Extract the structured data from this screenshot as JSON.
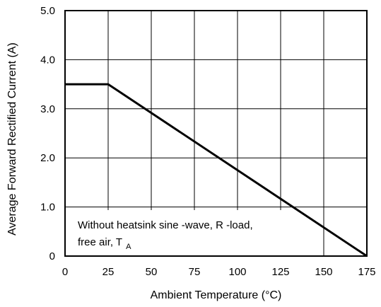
{
  "chart_data": {
    "type": "line",
    "xlabel": "Ambient Temperature (°C)",
    "ylabel": "Average Forward Rectified Current (A)",
    "xlim": [
      0,
      175
    ],
    "ylim": [
      0,
      5
    ],
    "x_ticks": [
      0,
      25,
      50,
      75,
      100,
      125,
      150,
      175
    ],
    "y_ticks": [
      0,
      1,
      2,
      3,
      4,
      5
    ],
    "x_tick_labels": [
      "0",
      "25",
      "50",
      "75",
      "100",
      "125",
      "150",
      "175"
    ],
    "y_tick_labels": [
      "0",
      "1.0",
      "2.0",
      "3.0",
      "4.0",
      "5.0"
    ],
    "grid": true,
    "series": [
      {
        "x": [
          0,
          25,
          175
        ],
        "y": [
          3.5,
          3.5,
          0
        ]
      }
    ],
    "annotation": {
      "line1": "Without heatsink sine -wave, R -load,",
      "line2_prefix": "free air, T",
      "line2_subscript": "A"
    }
  }
}
